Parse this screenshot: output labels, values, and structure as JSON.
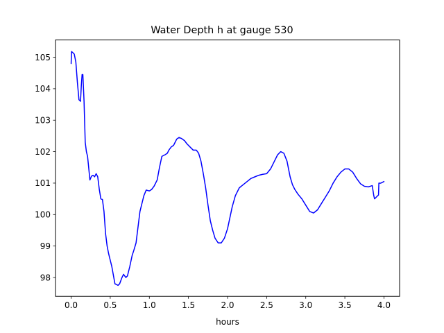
{
  "chart_data": {
    "type": "line",
    "title": "Water Depth h at gauge 530",
    "xlabel": "hours",
    "ylabel": "",
    "xlim": [
      -0.2,
      4.2
    ],
    "ylim": [
      97.4,
      105.55
    ],
    "xticks": [
      0.0,
      0.5,
      1.0,
      1.5,
      2.0,
      2.5,
      3.0,
      3.5,
      4.0
    ],
    "xtick_labels": [
      "0.0",
      "0.5",
      "1.0",
      "1.5",
      "2.0",
      "2.5",
      "3.0",
      "3.5",
      "4.0"
    ],
    "yticks": [
      98,
      99,
      100,
      101,
      102,
      103,
      104,
      105
    ],
    "ytick_labels": [
      "98",
      "99",
      "100",
      "101",
      "102",
      "103",
      "104",
      "105"
    ],
    "grid": false,
    "legend": "none",
    "series": [
      {
        "color": "#0000ff",
        "x": [
          0.0,
          0.005,
          0.02,
          0.04,
          0.06,
          0.08,
          0.1,
          0.12,
          0.13,
          0.14,
          0.15,
          0.165,
          0.18,
          0.195,
          0.21,
          0.22,
          0.24,
          0.26,
          0.28,
          0.3,
          0.32,
          0.34,
          0.36,
          0.38,
          0.4,
          0.42,
          0.44,
          0.46,
          0.48,
          0.5,
          0.52,
          0.56,
          0.6,
          0.62,
          0.65,
          0.67,
          0.7,
          0.72,
          0.75,
          0.78,
          0.8,
          0.83,
          0.86,
          0.88,
          0.9,
          0.93,
          0.96,
          1.0,
          1.03,
          1.06,
          1.1,
          1.13,
          1.16,
          1.2,
          1.23,
          1.25,
          1.28,
          1.31,
          1.35,
          1.38,
          1.41,
          1.45,
          1.48,
          1.52,
          1.56,
          1.6,
          1.63,
          1.66,
          1.69,
          1.72,
          1.75,
          1.78,
          1.81,
          1.84,
          1.88,
          1.92,
          1.96,
          2.0,
          2.03,
          2.06,
          2.1,
          2.15,
          2.2,
          2.25,
          2.3,
          2.35,
          2.4,
          2.45,
          2.5,
          2.55,
          2.6,
          2.64,
          2.68,
          2.72,
          2.76,
          2.8,
          2.83,
          2.86,
          2.9,
          2.95,
          3.0,
          3.05,
          3.1,
          3.15,
          3.2,
          3.25,
          3.3,
          3.35,
          3.4,
          3.45,
          3.5,
          3.55,
          3.6,
          3.65,
          3.7,
          3.75,
          3.8,
          3.85,
          3.87,
          3.88,
          3.9,
          3.92,
          3.93,
          3.935,
          3.96,
          4.0
        ],
        "y": [
          104.8,
          105.18,
          105.15,
          105.1,
          104.85,
          104.2,
          103.65,
          103.6,
          104.1,
          104.45,
          104.45,
          103.6,
          102.3,
          102.0,
          101.85,
          101.6,
          101.1,
          101.22,
          101.25,
          101.2,
          101.3,
          101.2,
          100.8,
          100.5,
          100.48,
          100.1,
          99.4,
          99.0,
          98.75,
          98.55,
          98.35,
          97.8,
          97.75,
          97.8,
          98.0,
          98.1,
          98.0,
          98.05,
          98.35,
          98.7,
          98.85,
          99.1,
          99.7,
          100.1,
          100.3,
          100.6,
          100.78,
          100.75,
          100.8,
          100.9,
          101.1,
          101.5,
          101.85,
          101.9,
          101.95,
          102.05,
          102.15,
          102.2,
          102.4,
          102.45,
          102.42,
          102.35,
          102.25,
          102.15,
          102.05,
          102.05,
          101.95,
          101.7,
          101.3,
          100.85,
          100.3,
          99.8,
          99.5,
          99.25,
          99.1,
          99.1,
          99.25,
          99.55,
          99.9,
          100.25,
          100.6,
          100.85,
          100.95,
          101.05,
          101.15,
          101.2,
          101.25,
          101.28,
          101.3,
          101.45,
          101.7,
          101.9,
          102.0,
          101.95,
          101.7,
          101.2,
          100.95,
          100.8,
          100.65,
          100.5,
          100.3,
          100.1,
          100.05,
          100.15,
          100.35,
          100.55,
          100.75,
          101.0,
          101.2,
          101.35,
          101.45,
          101.45,
          101.35,
          101.15,
          100.98,
          100.9,
          100.88,
          100.92,
          100.6,
          100.5,
          100.55,
          100.6,
          100.62,
          101.0,
          101.0,
          101.05
        ]
      }
    ]
  }
}
